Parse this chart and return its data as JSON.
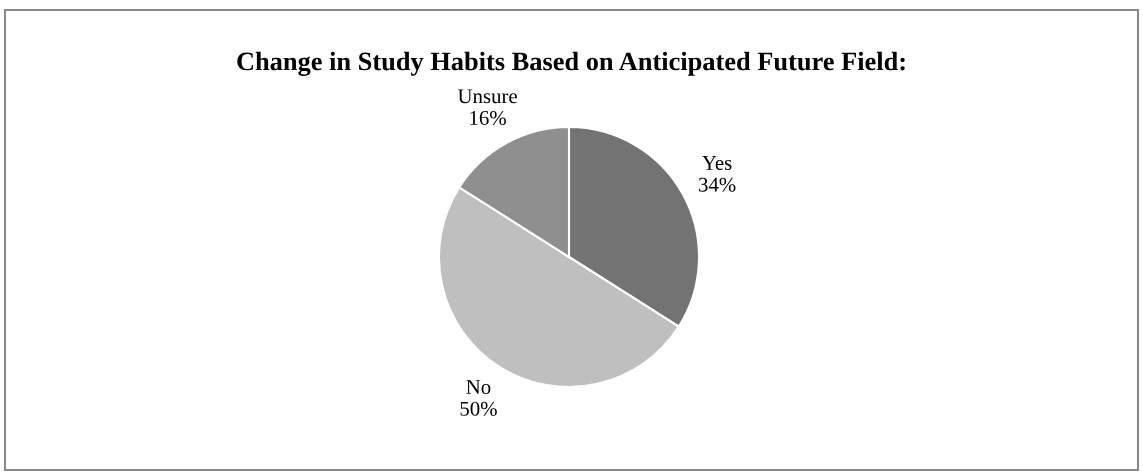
{
  "chart_data": {
    "type": "pie",
    "title": "Change in Study Habits Based on Anticipated Future Field:",
    "categories": [
      "Yes",
      "No",
      "Unsure"
    ],
    "values": [
      34,
      50,
      16
    ],
    "colors": [
      "#737373",
      "#bfbfbf",
      "#8f8f8f"
    ],
    "value_labels": [
      "34%",
      "50%",
      "16%"
    ]
  }
}
